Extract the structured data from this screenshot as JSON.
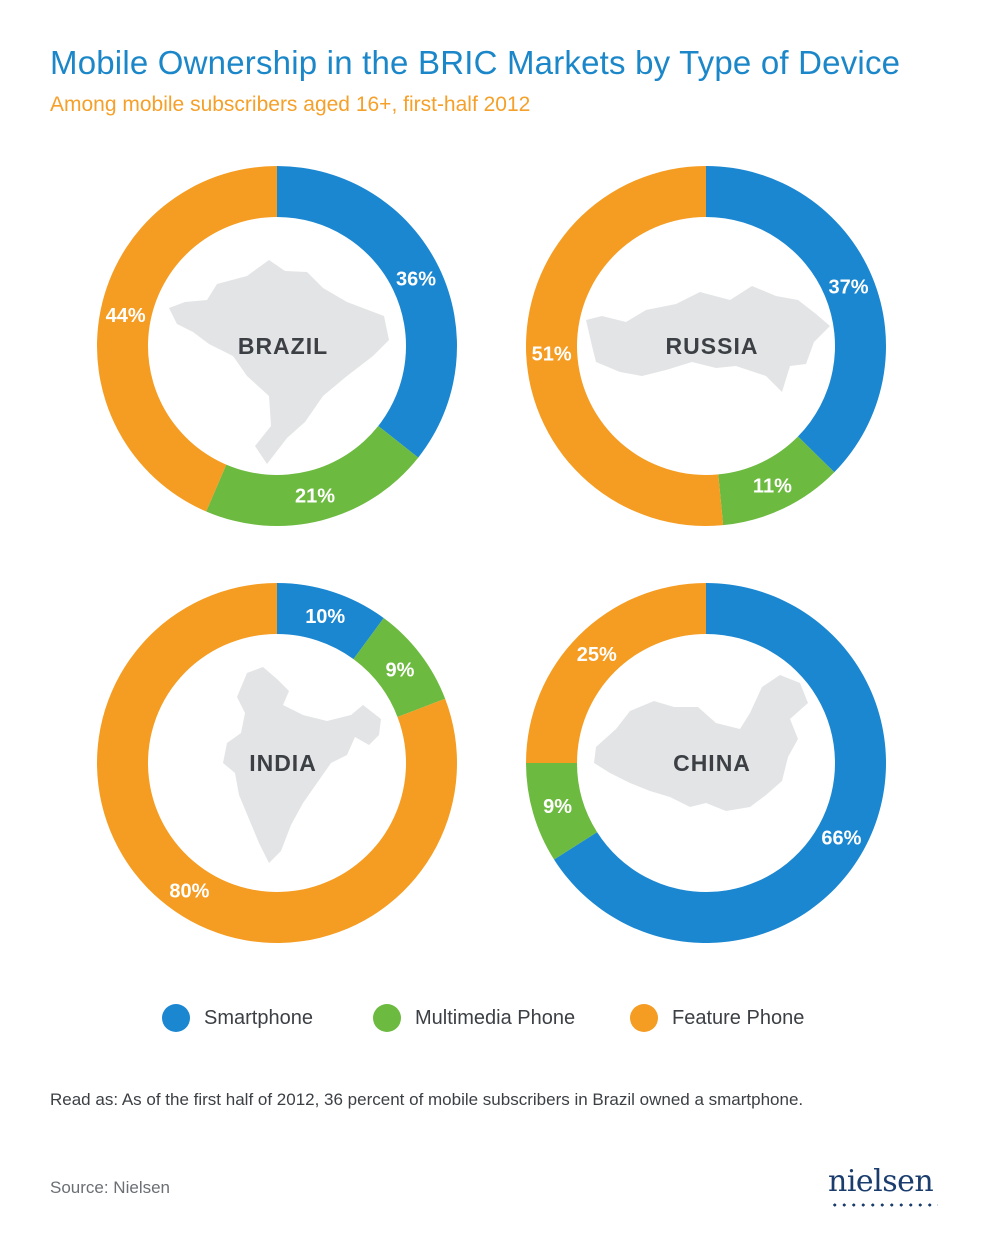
{
  "title": "Mobile Ownership in the BRIC Markets by Type of Device",
  "subtitle": "Among mobile subscribers aged 16+, first-half 2012",
  "colors": {
    "smartphone": "#1b87d1",
    "multimedia": "#6cba3f",
    "feature": "#f59c22"
  },
  "legend": [
    {
      "label": "Smartphone",
      "color": "#1b87d1"
    },
    {
      "label": "Multimedia Phone",
      "color": "#6cba3f"
    },
    {
      "label": "Feature Phone",
      "color": "#f59c22"
    }
  ],
  "note": "Read as: As of the first half of 2012, 36 percent of mobile subscribers in Brazil owned a smartphone.",
  "source": "Source: Nielsen",
  "logo": "nielsen",
  "chart_data": [
    {
      "type": "pie",
      "name": "BRAZIL",
      "categories": [
        "Smartphone",
        "Multimedia Phone",
        "Feature Phone"
      ],
      "values": [
        36,
        21,
        44
      ],
      "labels": [
        "36%",
        "21%",
        "44%"
      ]
    },
    {
      "type": "pie",
      "name": "RUSSIA",
      "categories": [
        "Smartphone",
        "Multimedia Phone",
        "Feature Phone"
      ],
      "values": [
        37,
        11,
        51
      ],
      "labels": [
        "37%",
        "11%",
        "51%"
      ]
    },
    {
      "type": "pie",
      "name": "INDIA",
      "categories": [
        "Smartphone",
        "Multimedia Phone",
        "Feature Phone"
      ],
      "values": [
        10,
        9,
        80
      ],
      "labels": [
        "10%",
        "9%",
        "80%"
      ]
    },
    {
      "type": "pie",
      "name": "CHINA",
      "categories": [
        "Smartphone",
        "Multimedia Phone",
        "Feature Phone"
      ],
      "values": [
        66,
        9,
        25
      ],
      "labels": [
        "66%",
        "9%",
        "25%"
      ]
    }
  ]
}
